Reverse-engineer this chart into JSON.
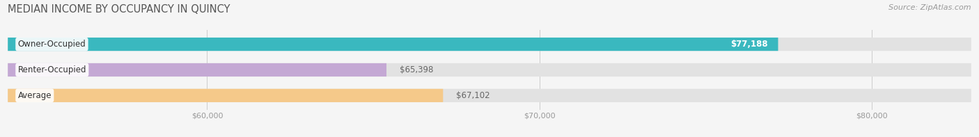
{
  "title": "MEDIAN INCOME BY OCCUPANCY IN QUINCY",
  "source": "Source: ZipAtlas.com",
  "categories": [
    "Owner-Occupied",
    "Renter-Occupied",
    "Average"
  ],
  "values": [
    77188,
    65398,
    67102
  ],
  "bar_colors": [
    "#3ab8bf",
    "#c4a8d4",
    "#f5c98a"
  ],
  "value_labels": [
    "$77,188",
    "$65,398",
    "$67,102"
  ],
  "xlim_min": 54000,
  "xlim_max": 83000,
  "xticks": [
    60000,
    70000,
    80000
  ],
  "xtick_labels": [
    "$60,000",
    "$70,000",
    "$80,000"
  ],
  "title_fontsize": 10.5,
  "source_fontsize": 8,
  "label_fontsize": 8.5,
  "tick_fontsize": 8,
  "bg_color": "#f5f5f5",
  "bar_height": 0.52,
  "bar_bg_color": "#e2e2e2"
}
